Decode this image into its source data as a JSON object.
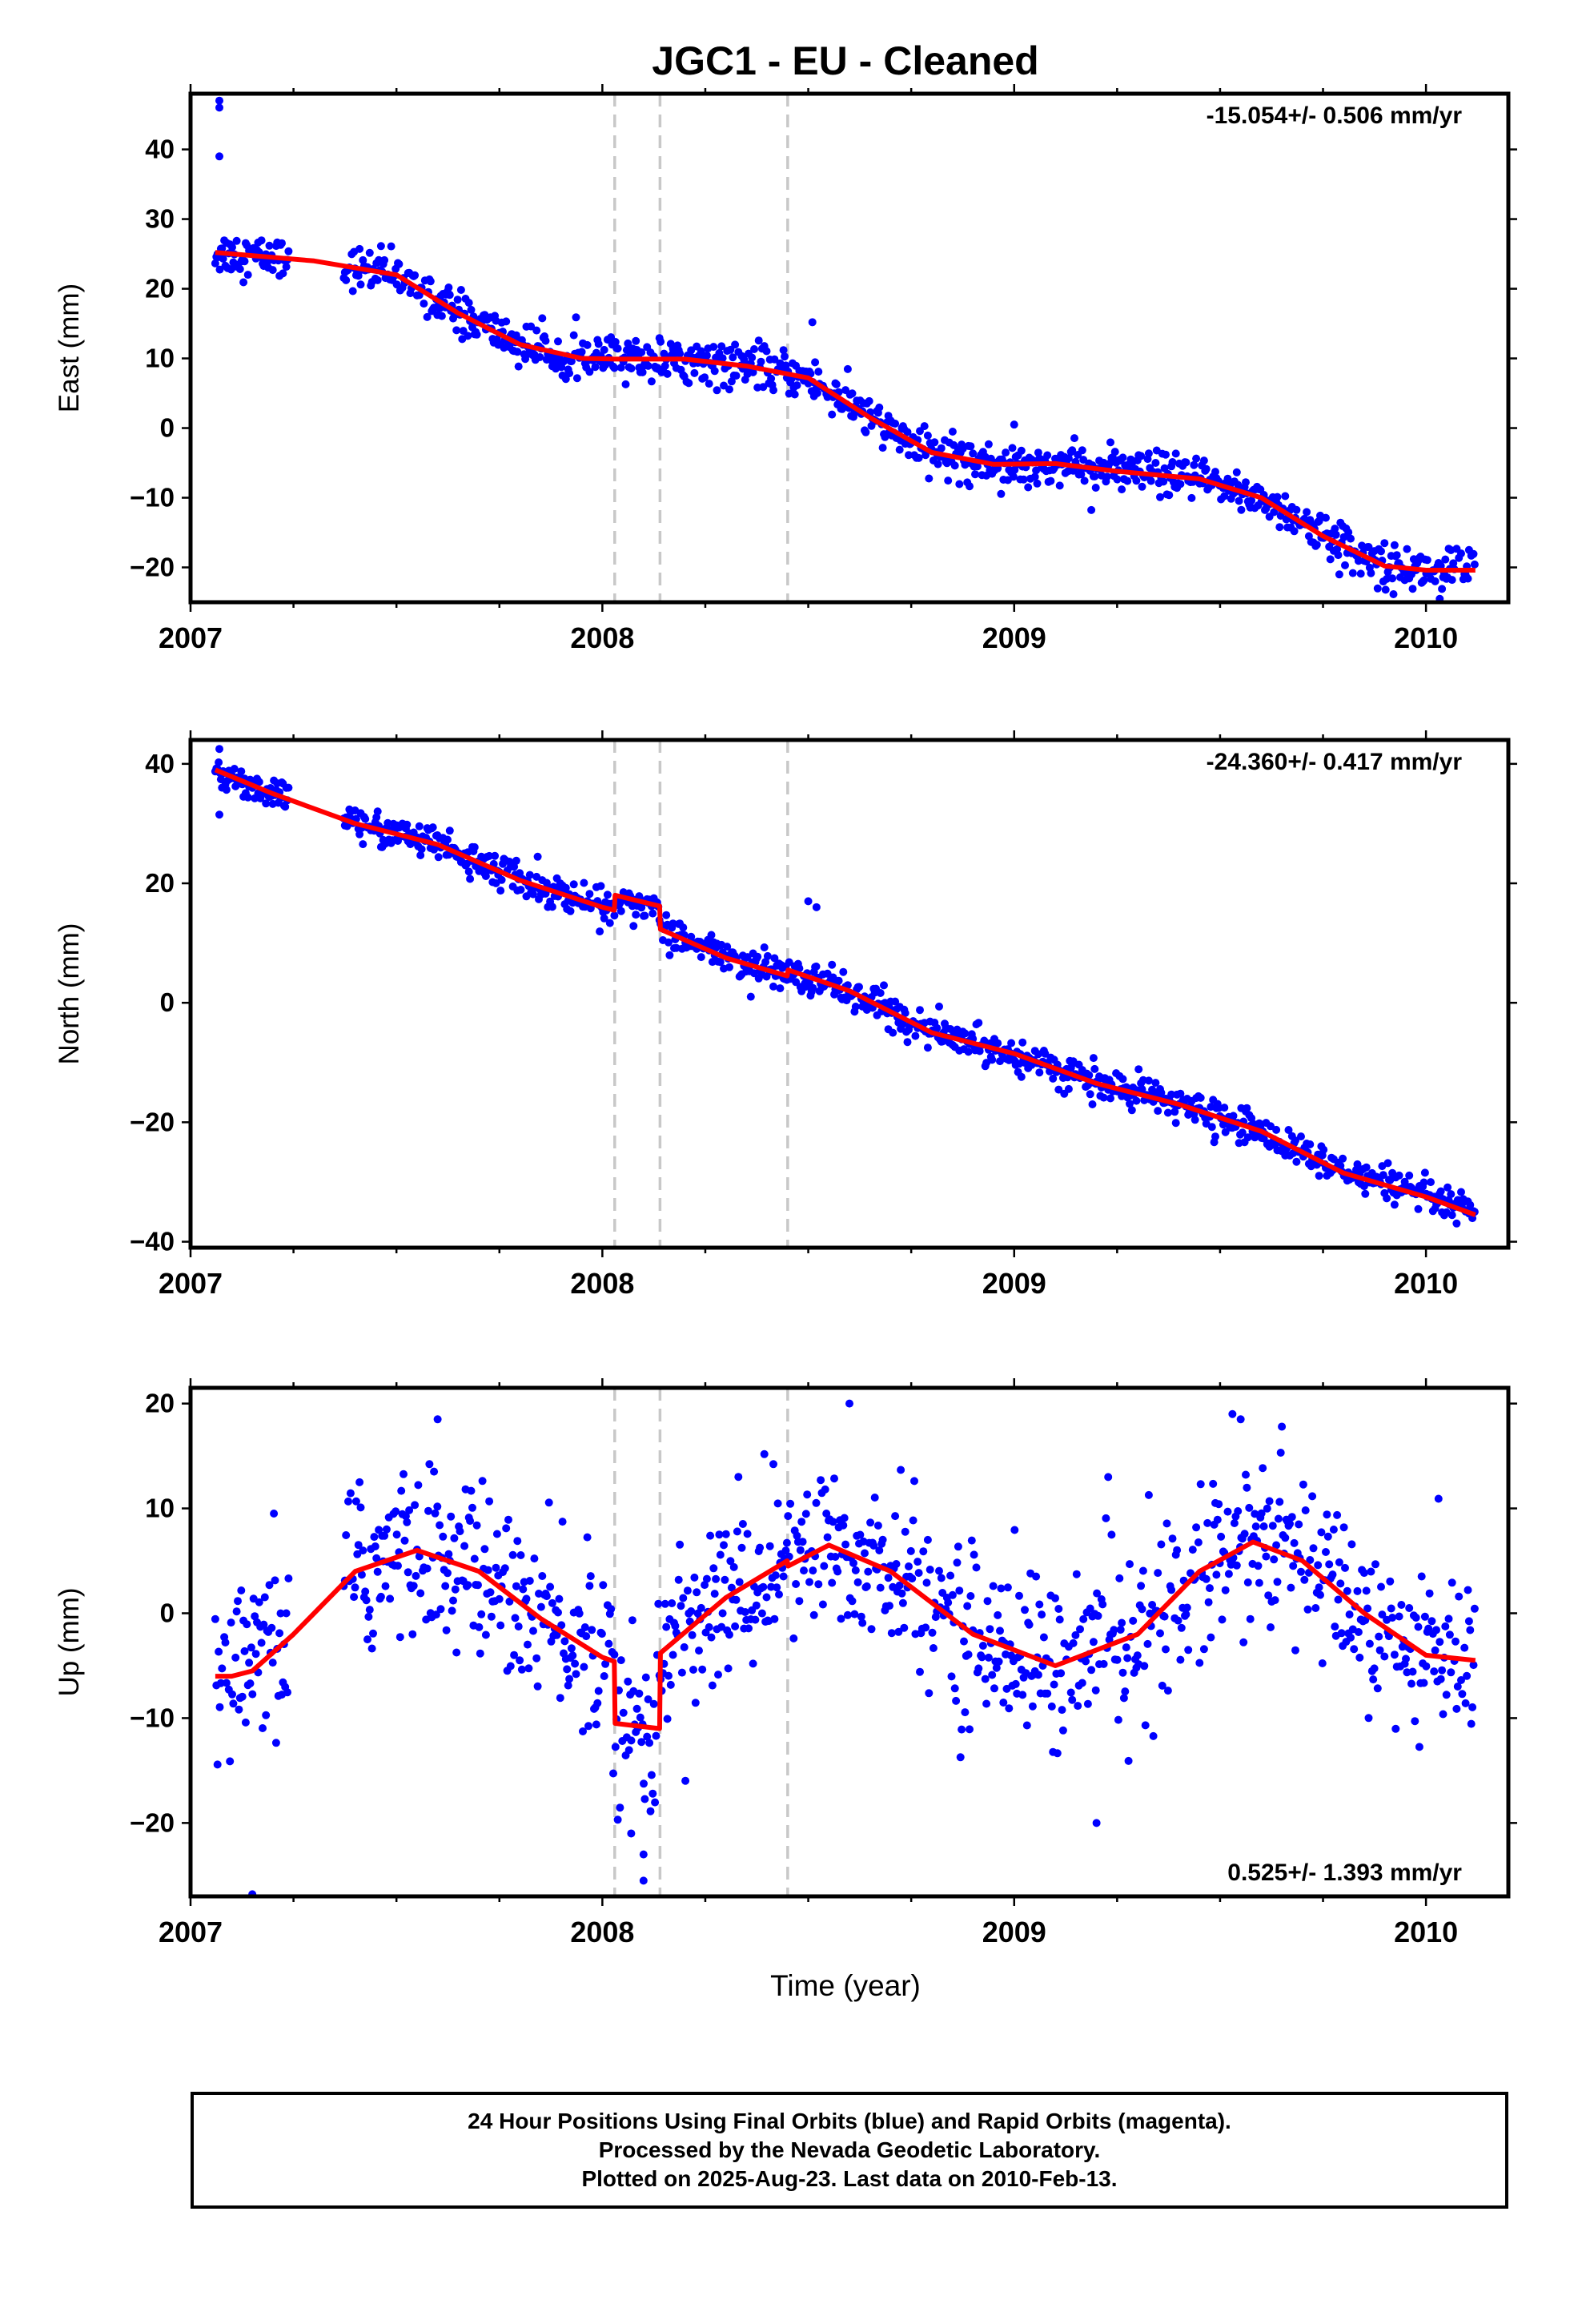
{
  "title": "JGC1  - EU - Cleaned",
  "colors": {
    "data": "#0000ff",
    "model": "#ff0000",
    "event": "#c8c8c8",
    "frame": "#000000"
  },
  "x_axis": {
    "label": "Time (year)",
    "ticks": [
      "2007",
      "2008",
      "2009",
      "2010"
    ]
  },
  "footer": {
    "line1": "24 Hour Positions Using Final Orbits (blue) and Rapid Orbits (magenta).",
    "line2": "Processed by the Nevada Geodetic Laboratory.",
    "line3": "Plotted on 2025-Aug-23. Last data on 2010-Feb-13."
  },
  "chart_data": [
    {
      "type": "scatter",
      "component": "east",
      "ylabel": "East (mm)",
      "rate_label": "-15.054+/- 0.506 mm/yr",
      "rate_position": "top-right",
      "xlim": [
        2007.0,
        2010.2
      ],
      "ylim": [
        -25,
        48
      ],
      "yticks": [
        -20,
        -10,
        0,
        10,
        20,
        30,
        40
      ],
      "event_lines": [
        2008.03,
        2008.14,
        2008.45
      ],
      "data_span": [
        2007.06,
        2010.12
      ],
      "data_gap": [
        2007.24,
        2007.37
      ],
      "outliers": [
        [
          2007.07,
          47.0
        ],
        [
          2007.07,
          46.0
        ],
        [
          2007.07,
          39.0
        ],
        [
          2008.51,
          15.2
        ],
        [
          2009.0,
          0.5
        ]
      ],
      "model": [
        [
          2007.06,
          25.2
        ],
        [
          2007.3,
          24.0
        ],
        [
          2007.5,
          22.0
        ],
        [
          2007.65,
          16.5
        ],
        [
          2007.8,
          12.0
        ],
        [
          2007.95,
          10.0
        ],
        [
          2008.03,
          9.9
        ],
        [
          2008.2,
          9.9
        ],
        [
          2008.35,
          8.9
        ],
        [
          2008.5,
          7.2
        ],
        [
          2008.65,
          1.5
        ],
        [
          2008.8,
          -3.5
        ],
        [
          2008.95,
          -5.2
        ],
        [
          2009.1,
          -5.1
        ],
        [
          2009.25,
          -6.2
        ],
        [
          2009.45,
          -7.3
        ],
        [
          2009.6,
          -10.0
        ],
        [
          2009.75,
          -15.5
        ],
        [
          2009.9,
          -19.8
        ],
        [
          2010.0,
          -20.4
        ],
        [
          2010.12,
          -20.4
        ]
      ]
    },
    {
      "type": "scatter",
      "component": "north",
      "ylabel": "North (mm)",
      "rate_label": "-24.360+/- 0.417 mm/yr",
      "rate_position": "top-right",
      "xlim": [
        2007.0,
        2010.2
      ],
      "ylim": [
        -41,
        44
      ],
      "yticks": [
        -40,
        -20,
        0,
        20,
        40
      ],
      "event_lines": [
        2008.03,
        2008.14,
        2008.45
      ],
      "data_span": [
        2007.06,
        2010.12
      ],
      "data_gap": [
        2007.24,
        2007.37
      ],
      "outliers": [
        [
          2007.07,
          31.5
        ],
        [
          2008.5,
          17.0
        ],
        [
          2008.52,
          16.0
        ],
        [
          2007.07,
          42.5
        ]
      ],
      "model": [
        [
          2007.06,
          39.0
        ],
        [
          2007.2,
          35.0
        ],
        [
          2007.4,
          30.0
        ],
        [
          2007.6,
          26.5
        ],
        [
          2007.8,
          20.5
        ],
        [
          2008.0,
          16.0
        ],
        [
          2008.029,
          15.5
        ],
        [
          2008.031,
          18.0
        ],
        [
          2008.139,
          16.2
        ],
        [
          2008.141,
          12.3
        ],
        [
          2008.3,
          7.5
        ],
        [
          2008.449,
          4.5
        ],
        [
          2008.451,
          5.5
        ],
        [
          2008.6,
          2.0
        ],
        [
          2008.8,
          -5.0
        ],
        [
          2009.0,
          -8.5
        ],
        [
          2009.2,
          -13.5
        ],
        [
          2009.4,
          -17.0
        ],
        [
          2009.6,
          -21.5
        ],
        [
          2009.8,
          -28.5
        ],
        [
          2010.0,
          -32.5
        ],
        [
          2010.12,
          -35.5
        ]
      ]
    },
    {
      "type": "scatter",
      "component": "up",
      "ylabel": "Up (mm)",
      "rate_label": "0.525+/- 1.393 mm/yr",
      "rate_position": "bottom-right",
      "xlim": [
        2007.0,
        2010.2
      ],
      "ylim": [
        -27,
        21.5
      ],
      "yticks": [
        -20,
        -10,
        0,
        10,
        20
      ],
      "event_lines": [
        2008.03,
        2008.14,
        2008.45
      ],
      "data_span": [
        2007.06,
        2010.12
      ],
      "data_gap": [
        2007.24,
        2007.37
      ],
      "outliers": [
        [
          2007.15,
          -26.8
        ],
        [
          2008.1,
          -25.5
        ],
        [
          2008.07,
          -21.0
        ],
        [
          2008.1,
          -23.0
        ],
        [
          2008.6,
          20.0
        ],
        [
          2009.53,
          19.0
        ],
        [
          2009.55,
          18.5
        ],
        [
          2007.6,
          18.5
        ],
        [
          2009.65,
          17.8
        ],
        [
          2009.2,
          -20.0
        ]
      ],
      "model": [
        [
          2007.06,
          -6.0
        ],
        [
          2007.1,
          -6.0
        ],
        [
          2007.15,
          -5.5
        ],
        [
          2007.25,
          -2.0
        ],
        [
          2007.4,
          4.0
        ],
        [
          2007.55,
          6.0
        ],
        [
          2007.7,
          4.0
        ],
        [
          2007.85,
          -0.5
        ],
        [
          2008.0,
          -4.2
        ],
        [
          2008.029,
          -4.6
        ],
        [
          2008.031,
          -10.5
        ],
        [
          2008.139,
          -11.0
        ],
        [
          2008.141,
          -3.8
        ],
        [
          2008.3,
          1.5
        ],
        [
          2008.449,
          5.0
        ],
        [
          2008.451,
          4.5
        ],
        [
          2008.55,
          6.5
        ],
        [
          2008.7,
          4.0
        ],
        [
          2008.9,
          -2.0
        ],
        [
          2009.1,
          -5.0
        ],
        [
          2009.3,
          -2.0
        ],
        [
          2009.45,
          4.0
        ],
        [
          2009.58,
          6.8
        ],
        [
          2009.7,
          5.0
        ],
        [
          2009.85,
          0.0
        ],
        [
          2010.0,
          -4.0
        ],
        [
          2010.12,
          -4.5
        ]
      ]
    }
  ]
}
